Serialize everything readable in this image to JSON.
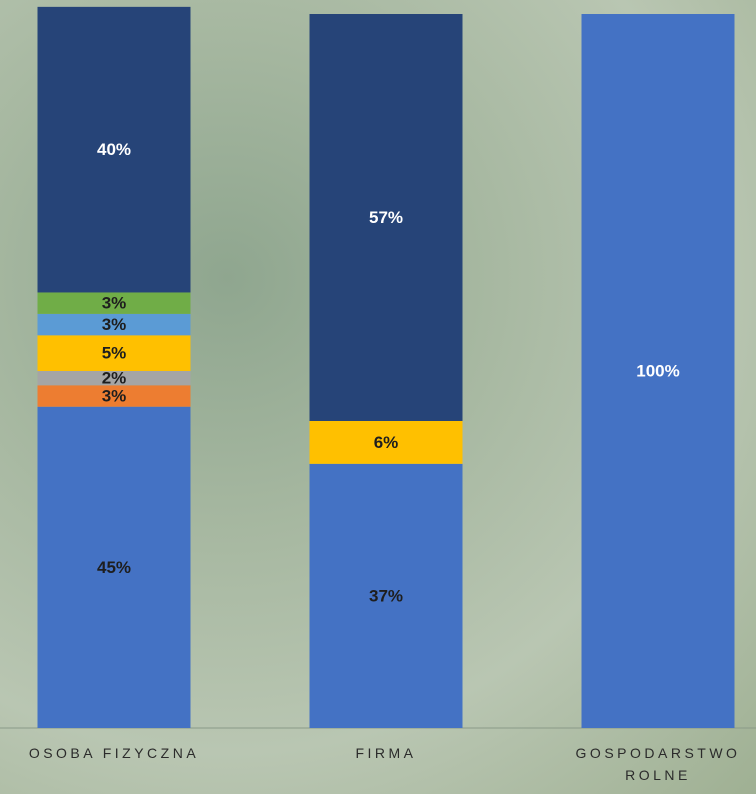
{
  "chart_data": {
    "type": "stacked_bar",
    "categories": [
      "OSOBA FIZYCZNA",
      "FIRMA",
      "GOSPODARSTWO ROLNE"
    ],
    "ylim": [
      0,
      100
    ],
    "series": [
      {
        "color": "#4472c4",
        "values": [
          45,
          37,
          100
        ],
        "value_labels": [
          "45%",
          "37%",
          "100%"
        ],
        "label_colors": [
          "#1e1e1e",
          "#1e1e1e",
          "#ffffff"
        ]
      },
      {
        "color": "#ed7d31",
        "values": [
          3,
          null,
          null
        ],
        "value_labels": [
          "3%",
          null,
          null
        ],
        "label_colors": [
          "#1e1e1e",
          null,
          null
        ]
      },
      {
        "color": "#a5a5a5",
        "values": [
          2,
          null,
          null
        ],
        "value_labels": [
          "2%",
          null,
          null
        ],
        "label_colors": [
          "#1e1e1e",
          null,
          null
        ]
      },
      {
        "color": "#ffc000",
        "values": [
          5,
          6,
          null
        ],
        "value_labels": [
          "5%",
          "6%",
          null
        ],
        "label_colors": [
          "#1e1e1e",
          "#1e1e1e",
          null
        ]
      },
      {
        "color": "#5b9bd5",
        "values": [
          3,
          null,
          null
        ],
        "value_labels": [
          "3%",
          null,
          null
        ],
        "label_colors": [
          "#1e1e1e",
          null,
          null
        ]
      },
      {
        "color": "#70ad47",
        "values": [
          3,
          null,
          null
        ],
        "value_labels": [
          "3%",
          null,
          null
        ],
        "label_colors": [
          "#1e1e1e",
          null,
          null
        ]
      },
      {
        "color": "#264478",
        "values": [
          40,
          57,
          null
        ],
        "value_labels": [
          "40%",
          "57%",
          null
        ],
        "label_colors": [
          "#ffffff",
          "#ffffff",
          null
        ]
      }
    ]
  }
}
